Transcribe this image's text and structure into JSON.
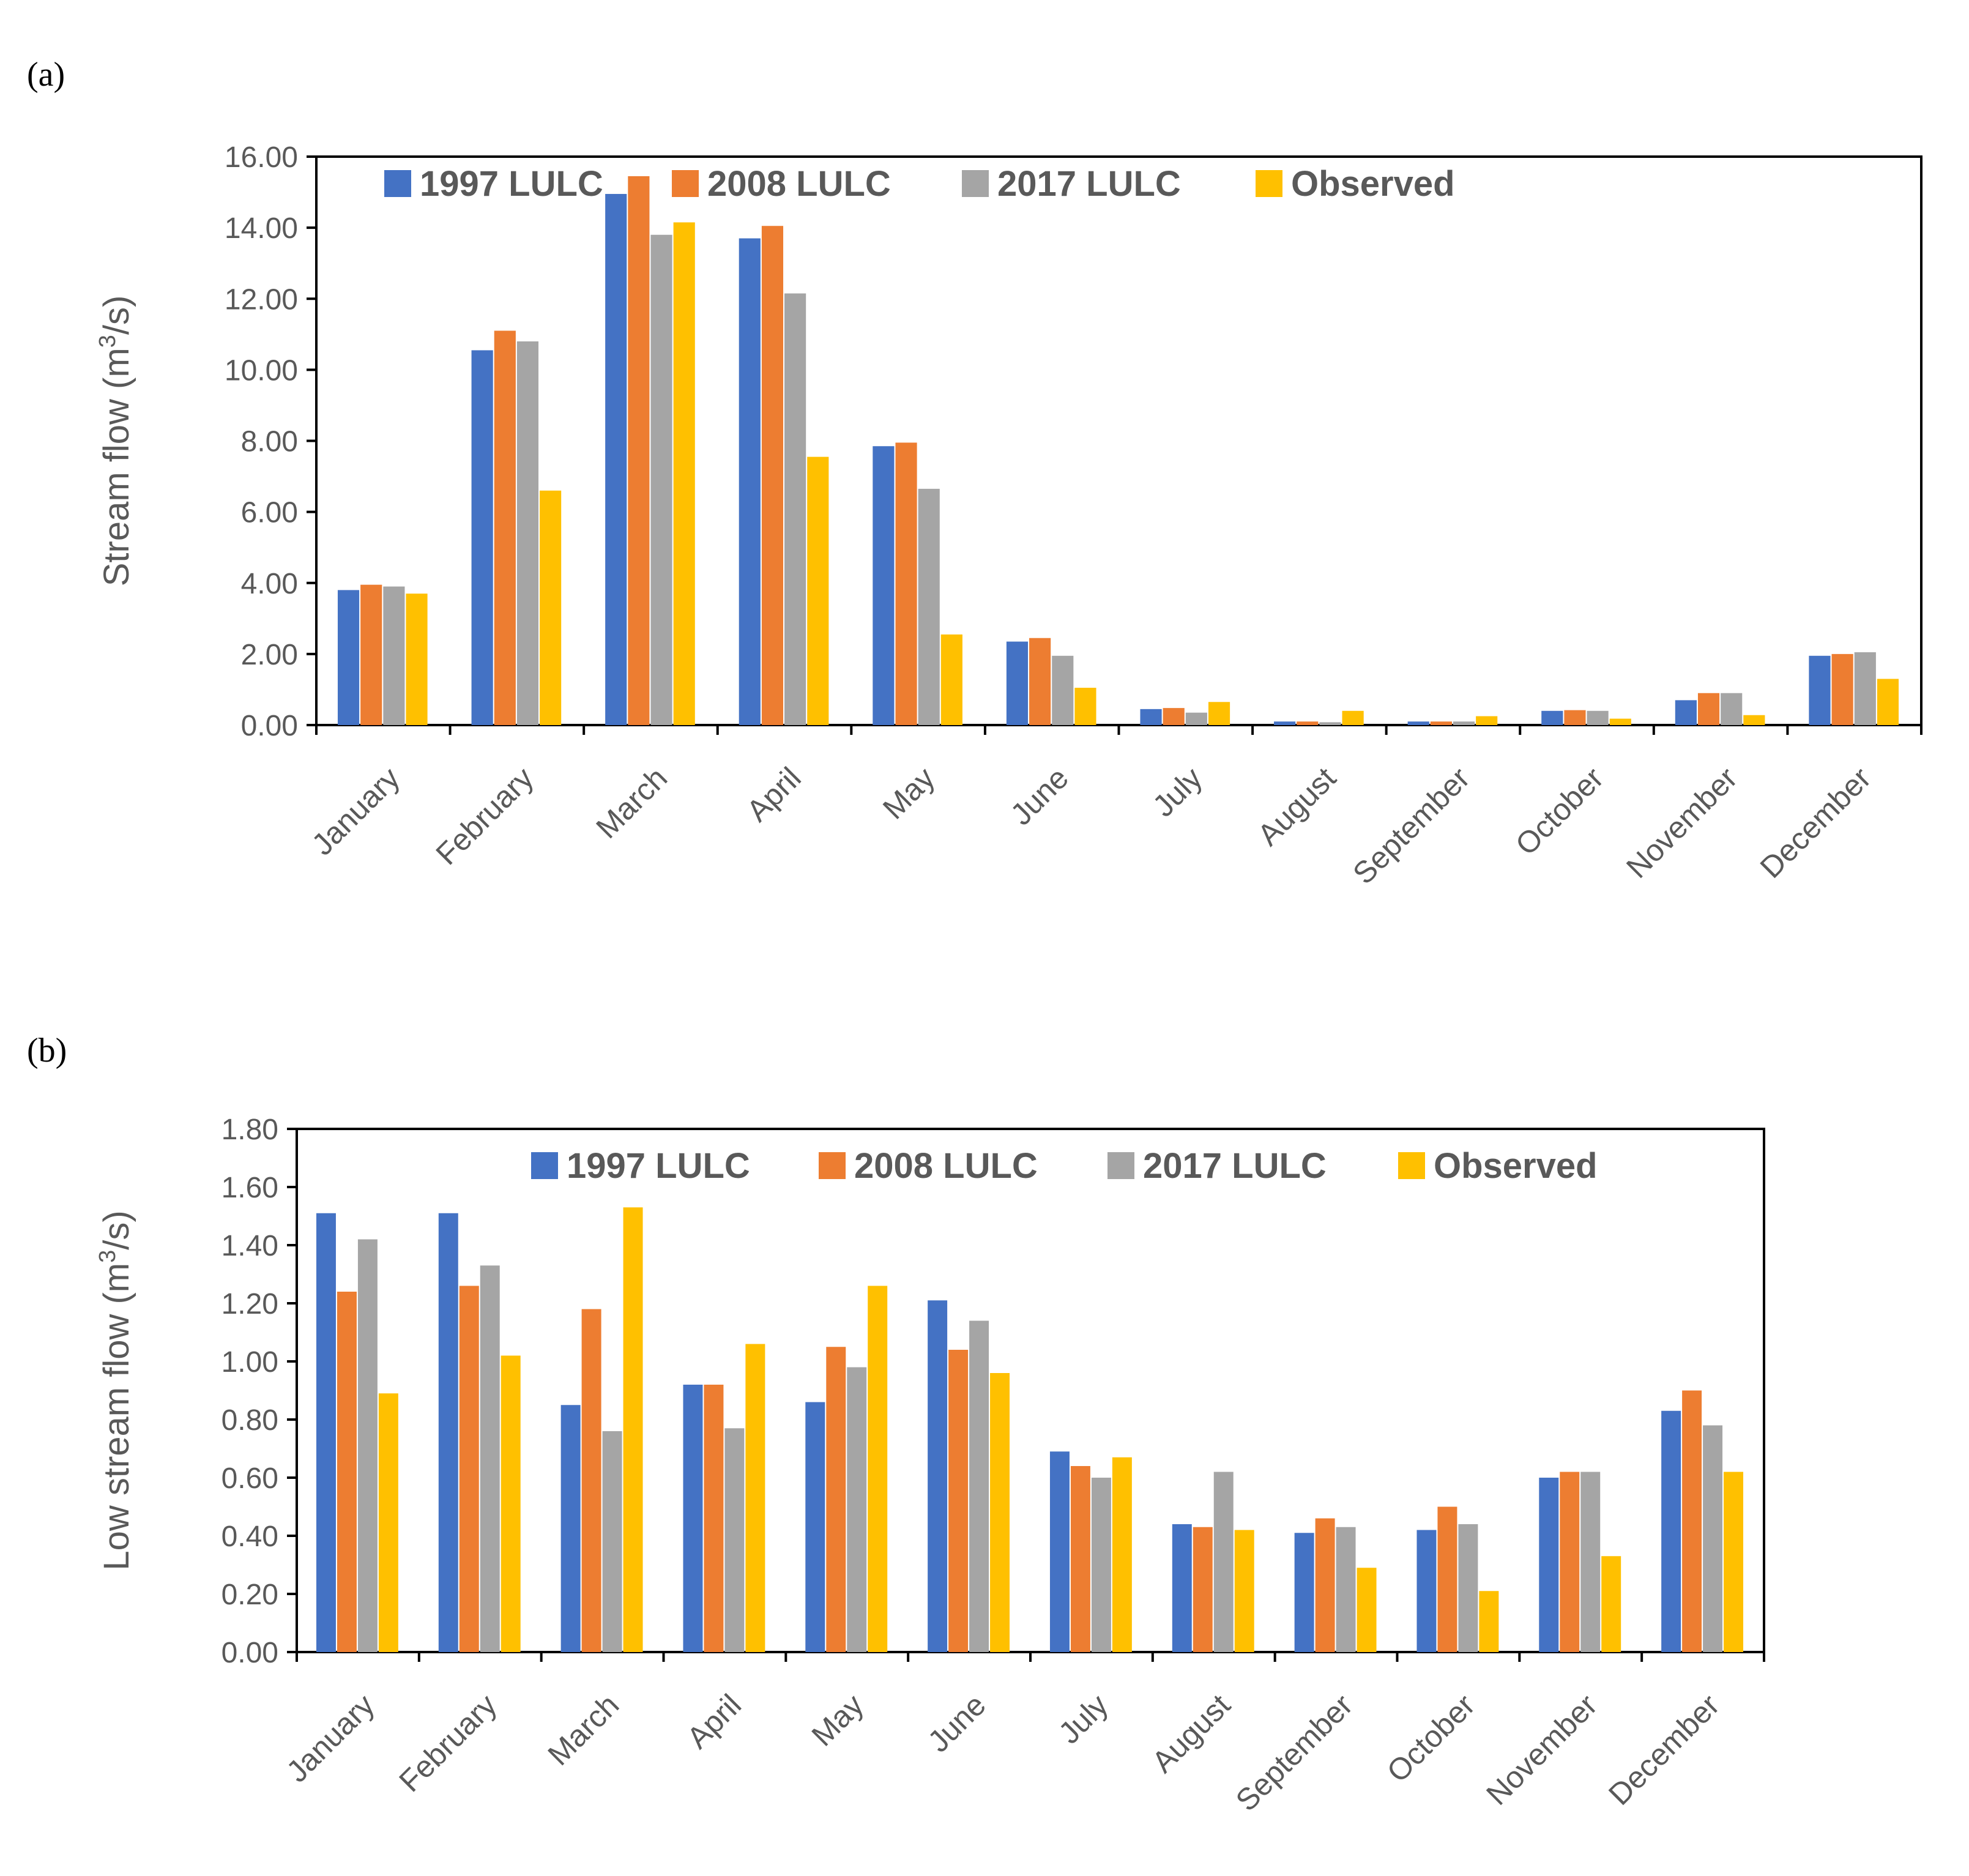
{
  "chart_data": [
    {
      "panel_label": "(a)",
      "type": "bar",
      "ylabel": "Stream flow (m³/s)",
      "ylabel_parts": {
        "base": "Stream flow (m",
        "sup": "3",
        "tail": "/s)"
      },
      "ylim": [
        0,
        16
      ],
      "yticks": [
        "0.00",
        "2.00",
        "4.00",
        "6.00",
        "8.00",
        "10.00",
        "12.00",
        "14.00",
        "16.00"
      ],
      "grid": false,
      "legend_position": "top",
      "categories": [
        "January",
        "February",
        "March",
        "April",
        "May",
        "June",
        "July",
        "August",
        "September",
        "October",
        "November",
        "December"
      ],
      "series": [
        {
          "name": "1997 LULC",
          "color": "#4472C4",
          "values": [
            3.8,
            10.55,
            14.95,
            13.7,
            7.85,
            2.35,
            0.45,
            0.1,
            0.1,
            0.4,
            0.7,
            1.95
          ]
        },
        {
          "name": "2008 LULC",
          "color": "#ED7D31",
          "values": [
            3.95,
            11.1,
            15.45,
            14.05,
            7.95,
            2.45,
            0.48,
            0.1,
            0.1,
            0.42,
            0.9,
            2.0
          ]
        },
        {
          "name": "2017 LULC",
          "color": "#A5A5A5",
          "values": [
            3.9,
            10.8,
            13.8,
            12.15,
            6.65,
            1.95,
            0.35,
            0.08,
            0.1,
            0.4,
            0.9,
            2.05
          ]
        },
        {
          "name": "Observed",
          "color": "#FFC000",
          "values": [
            3.7,
            6.6,
            14.15,
            7.55,
            2.55,
            1.05,
            0.65,
            0.4,
            0.25,
            0.18,
            0.28,
            1.3
          ]
        }
      ]
    },
    {
      "panel_label": "(b)",
      "type": "bar",
      "ylabel": "Low stream flow (m³/s)",
      "ylabel_parts": {
        "base": "Low stream flow (m",
        "sup": "3",
        "tail": "/s)"
      },
      "ylim": [
        0,
        1.8
      ],
      "yticks": [
        "0.00",
        "0.20",
        "0.40",
        "0.60",
        "0.80",
        "1.00",
        "1.20",
        "1.40",
        "1.60",
        "1.80"
      ],
      "grid": false,
      "legend_position": "top",
      "categories": [
        "January",
        "February",
        "March",
        "April",
        "May",
        "June",
        "July",
        "August",
        "September",
        "October",
        "November",
        "December"
      ],
      "series": [
        {
          "name": "1997 LULC",
          "color": "#4472C4",
          "values": [
            1.51,
            1.51,
            0.85,
            0.92,
            0.86,
            1.21,
            0.69,
            0.44,
            0.41,
            0.42,
            0.6,
            0.83
          ]
        },
        {
          "name": "2008 LULC",
          "color": "#ED7D31",
          "values": [
            1.24,
            1.26,
            1.18,
            0.92,
            1.05,
            1.04,
            0.64,
            0.43,
            0.46,
            0.5,
            0.62,
            0.9
          ]
        },
        {
          "name": "2017 LULC",
          "color": "#A5A5A5",
          "values": [
            1.42,
            1.33,
            0.76,
            0.77,
            0.98,
            1.14,
            0.6,
            0.62,
            0.43,
            0.44,
            0.62,
            0.78
          ]
        },
        {
          "name": "Observed",
          "color": "#FFC000",
          "values": [
            0.89,
            1.02,
            1.53,
            1.06,
            1.26,
            0.96,
            0.67,
            0.42,
            0.29,
            0.21,
            0.33,
            0.62
          ]
        }
      ]
    }
  ]
}
